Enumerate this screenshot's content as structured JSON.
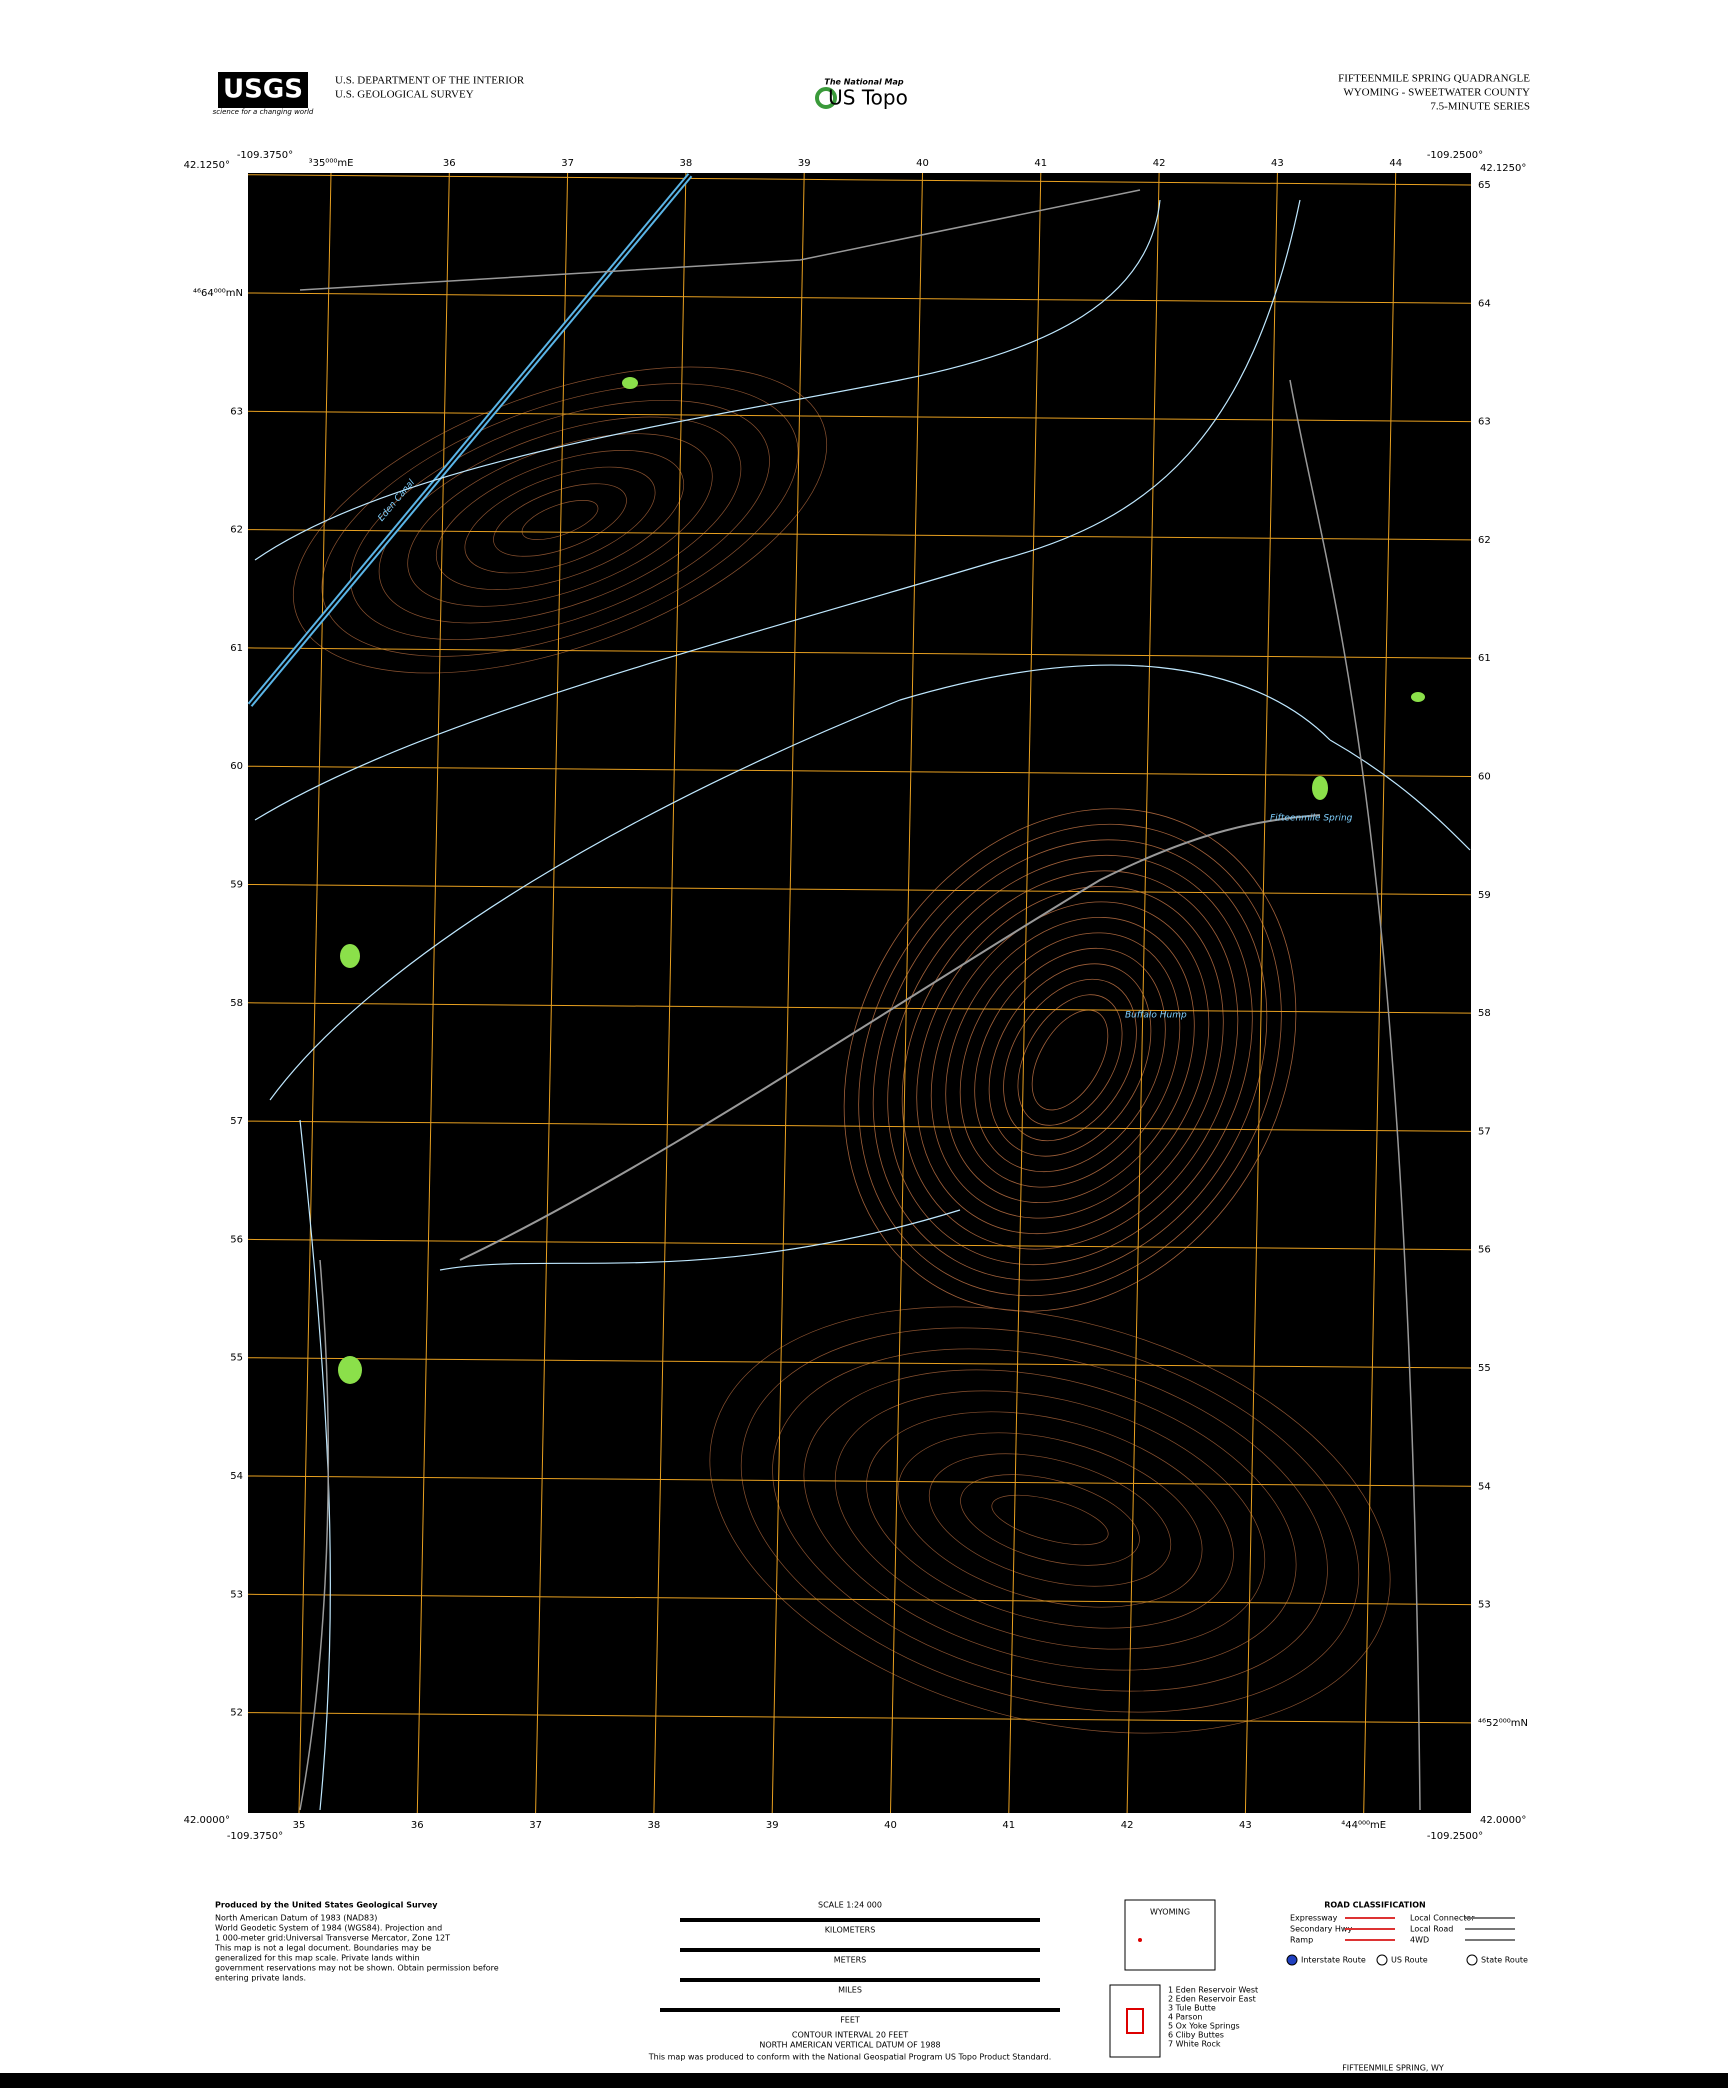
{
  "header": {
    "agency": "USGS",
    "agency_tagline": "science for a changing world",
    "dept": "U.S. DEPARTMENT OF THE INTERIOR",
    "survey": "U.S. GEOLOGICAL SURVEY",
    "brand_small": "The National Map",
    "brand": "US Topo",
    "title": "FIFTEENMILE SPRING QUADRANGLE",
    "location": "WYOMING - SWEETWATER COUNTY",
    "series": "7.5-MINUTE SERIES"
  },
  "corners": {
    "top_left_lon": "-109.3750°",
    "top_left_lat": "42.1250°",
    "top_right_lon": "-109.2500°",
    "top_right_lat": "42.1250°",
    "bottom_left_lat": "42.0000°",
    "bottom_left_lon": "-109.3750°",
    "bottom_right_lon": "-109.2500°",
    "bottom_right_lat": "42.0000°"
  },
  "grid": {
    "top_eastings": [
      "³35⁰⁰⁰mE",
      "36",
      "37",
      "38",
      "39",
      "40",
      "41",
      "42",
      "43",
      "44"
    ],
    "bottom_eastings": [
      "35",
      "36",
      "37",
      "38",
      "39",
      "40",
      "41",
      "42",
      "43",
      "⁴44⁰⁰⁰mE"
    ],
    "right_northings": [
      "65",
      "64",
      "63",
      "62",
      "61",
      "60",
      "59",
      "58",
      "57",
      "56",
      "55",
      "54",
      "53",
      "⁴⁶52⁰⁰⁰mN"
    ],
    "left_northings": [
      "⁴⁶64⁰⁰⁰mN",
      "63",
      "62",
      "61",
      "60",
      "59",
      "58",
      "57",
      "56",
      "55",
      "54",
      "53",
      "52"
    ]
  },
  "map_labels": {
    "peak": "Buffalo Hump",
    "spring": "Fifteenmile Spring",
    "canal": "Eden Canal"
  },
  "footer": {
    "produced_by": "Produced by the United States Geological Survey",
    "produced_lines": [
      "North American Datum of 1983 (NAD83)",
      "World Geodetic System of 1984 (WGS84). Projection and",
      "1 000-meter grid:Universal Transverse Mercator, Zone 12T",
      "This map is not a legal document. Boundaries may be",
      "generalized for this map scale. Private lands within",
      "government reservations may not be shown. Obtain permission before",
      "entering private lands."
    ],
    "scale": "SCALE 1:24 000",
    "units": [
      "KILOMETERS",
      "METERS",
      "MILES",
      "FEET"
    ],
    "contour_interval": "CONTOUR INTERVAL 20 FEET",
    "datum": "NORTH AMERICAN VERTICAL DATUM OF 1988",
    "standard": "This map was produced to conform with the National Geospatial Program US Topo Product Standard.",
    "road_title": "ROAD CLASSIFICATION",
    "roads": [
      "Expressway",
      "Local Connector",
      "Secondary Hwy",
      "Local Road",
      "Ramp",
      "4WD"
    ],
    "route_markers": [
      "Interstate Route",
      "US Route",
      "State Route"
    ],
    "state": "WYOMING",
    "adjoining": [
      "1 Eden Reservoir West",
      "2 Eden Reservoir East",
      "3 Tule Butte",
      "4 Parson",
      "5 Ox Yoke Springs",
      "6 Cliby Buttes",
      "7 White Rock"
    ],
    "bottom_title": "FIFTEENMILE SPRING, WY"
  }
}
